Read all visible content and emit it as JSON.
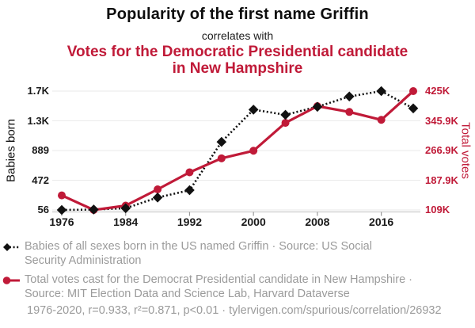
{
  "title": "Popularity of the first name Griffin",
  "subtitle_connector": "correlates with",
  "subtitle": "Votes for the Democratic Presidential candidate in New Hampshire",
  "colors": {
    "accent_red": "#c01a38",
    "series_black": "#111111",
    "legend_gray": "#9b9b9b",
    "grid": "#eaeaea",
    "axis_line": "#cccccc",
    "tick_mark": "#999999"
  },
  "chart_data": {
    "type": "line",
    "x": [
      1976,
      1980,
      1984,
      1988,
      1992,
      1996,
      2000,
      2004,
      2008,
      2012,
      2016,
      2020
    ],
    "series": [
      {
        "name": "Babies of all sexes born in the US named Griffin",
        "axis": "left",
        "style": "dotted-line-diamond-markers",
        "color": "#111111",
        "values": [
          56,
          62,
          80,
          230,
          333,
          1010,
          1462,
          1390,
          1502,
          1647,
          1722,
          1480
        ]
      },
      {
        "name": "Total votes cast for the Democrat Presidential candidate in New Hampshire",
        "axis": "right",
        "style": "solid-line-circle-markers",
        "color": "#c01a38",
        "values": [
          147635,
          108864,
          120395,
          163696,
          209040,
          246214,
          266348,
          340511,
          384826,
          369561,
          348526,
          424937
        ]
      }
    ],
    "left_axis": {
      "label": "Babies born",
      "min": 56,
      "max": 1722,
      "tick_labels": [
        "1.7K",
        "1.3K",
        "889",
        "472",
        "56"
      ]
    },
    "right_axis": {
      "label": "Total votes",
      "min": 108864,
      "max": 424937,
      "tick_labels": [
        "425K",
        "345.9K",
        "266.9K",
        "187.9K",
        "109K"
      ]
    },
    "x_ticks": [
      "1976",
      "1984",
      "1992",
      "2000",
      "2008",
      "2016"
    ],
    "x_range": [
      1976,
      2020
    ],
    "grid": true,
    "legend_position": "bottom"
  },
  "legend": [
    {
      "marker": "black-diamond-dotted-line",
      "text": "Babies of all sexes born in the US named Griffin · Source: US Social Security Administration"
    },
    {
      "marker": "red-circle-solid-line",
      "text": "Total votes cast for the Democrat Presidential candidate in New Hampshire · Source: MIT Election Data and Science Lab, Harvard Dataverse"
    }
  ],
  "footer": "1976-2020, r=0.933, r²=0.871, p<0.01 · tylervigen.com/spurious/correlation/26932"
}
